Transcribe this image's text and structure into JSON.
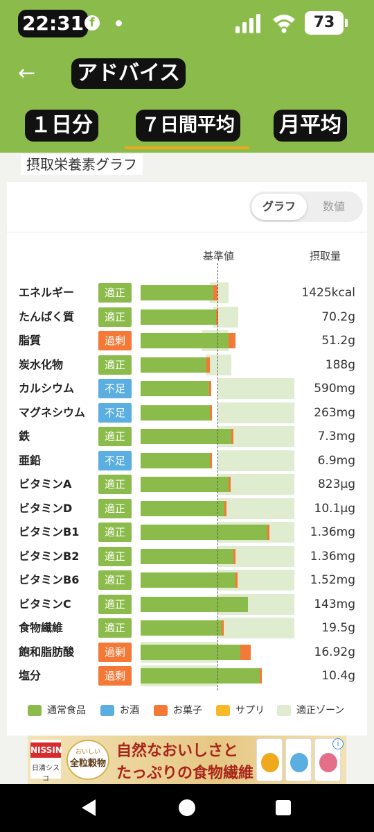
{
  "status": {
    "time": "22:31",
    "battery": "73",
    "notification_app": "facebook"
  },
  "appbar": {
    "title": "アドバイス",
    "back_icon": "arrow-left-icon"
  },
  "tabs": [
    {
      "label": "１日分",
      "selected": false
    },
    {
      "label": "７日間平均",
      "selected": true
    },
    {
      "label": "月平均",
      "selected": false
    }
  ],
  "section": {
    "title": "摂取栄養素グラフ"
  },
  "toggle": {
    "graph": "グラフ",
    "number": "数値",
    "selected": "graph"
  },
  "headers": {
    "base": "基準値",
    "amount": "摂取量"
  },
  "colors": {
    "normal_food": "#8bbb4a",
    "alcohol": "#5aaee0",
    "snack": "#f47836",
    "supplement": "#f7b82a",
    "proper_zone": "#e0eccf",
    "badge_proper": "#8bbb4a",
    "badge_excess": "#f47836",
    "badge_short": "#5aaee0"
  },
  "chart_data": {
    "type": "bar",
    "baseline_label": "基準値",
    "value_unit": "fraction of reference value (基準値 = 1.0)",
    "rows": [
      {
        "name": "エネルギー",
        "status": "適正",
        "status_type": "proper",
        "amount": "1425kcal",
        "food": 0.95,
        "snack": 0.05,
        "zone": [
          0.9,
          1.14
        ]
      },
      {
        "name": "たんぱく質",
        "status": "適正",
        "status_type": "proper",
        "amount": "70.2g",
        "food": 0.98,
        "snack": 0.03,
        "zone": [
          0.95,
          1.27
        ]
      },
      {
        "name": "脂質",
        "status": "過剰",
        "status_type": "excess",
        "amount": "51.2g",
        "food": 1.14,
        "snack": 0.09,
        "zone": [
          0.79,
          1.14
        ]
      },
      {
        "name": "炭水化物",
        "status": "適正",
        "status_type": "proper",
        "amount": "188g",
        "food": 0.86,
        "snack": 0.04,
        "zone": [
          0.85,
          1.18
        ]
      },
      {
        "name": "カルシウム",
        "status": "不足",
        "status_type": "short",
        "amount": "590mg",
        "food": 0.89,
        "snack": 0.01,
        "zone": [
          1.0,
          2.0
        ]
      },
      {
        "name": "マグネシウム",
        "status": "不足",
        "status_type": "short",
        "amount": "263mg",
        "food": 0.9,
        "snack": 0.01,
        "zone": [
          1.0,
          2.0
        ]
      },
      {
        "name": "鉄",
        "status": "適正",
        "status_type": "proper",
        "amount": "7.3mg",
        "food": 1.18,
        "snack": 0.02,
        "zone": [
          1.0,
          2.0
        ]
      },
      {
        "name": "亜鉛",
        "status": "不足",
        "status_type": "short",
        "amount": "6.9mg",
        "food": 0.9,
        "snack": 0.01,
        "zone": [
          1.0,
          2.0
        ]
      },
      {
        "name": "ビタミンA",
        "status": "適正",
        "status_type": "proper",
        "amount": "823μg",
        "food": 1.14,
        "snack": 0.02,
        "zone": [
          1.0,
          2.0
        ]
      },
      {
        "name": "ビタミンD",
        "status": "適正",
        "status_type": "proper",
        "amount": "10.1μg",
        "food": 1.09,
        "snack": 0.02,
        "zone": [
          1.0,
          2.0
        ]
      },
      {
        "name": "ビタミンB1",
        "status": "適正",
        "status_type": "proper",
        "amount": "1.36mg",
        "food": 1.65,
        "snack": 0.02,
        "zone": [
          1.0,
          2.0
        ]
      },
      {
        "name": "ビタミンB2",
        "status": "適正",
        "status_type": "proper",
        "amount": "1.36mg",
        "food": 1.21,
        "snack": 0.02,
        "zone": [
          1.0,
          2.0
        ]
      },
      {
        "name": "ビタミンB6",
        "status": "適正",
        "status_type": "proper",
        "amount": "1.52mg",
        "food": 1.23,
        "snack": 0.02,
        "zone": [
          1.0,
          2.0
        ]
      },
      {
        "name": "ビタミンC",
        "status": "適正",
        "status_type": "proper",
        "amount": "143mg",
        "food": 1.4,
        "snack": 0.0,
        "zone": [
          1.0,
          2.0
        ]
      },
      {
        "name": "食物繊維",
        "status": "適正",
        "status_type": "proper",
        "amount": "19.5g",
        "food": 1.05,
        "snack": 0.02,
        "zone": [
          1.0,
          2.0
        ]
      },
      {
        "name": "飽和脂肪酸",
        "status": "過剰",
        "status_type": "excess",
        "amount": "16.92g",
        "food": 1.3,
        "snack": 0.13,
        "zone": [
          0.0,
          1.0
        ]
      },
      {
        "name": "塩分",
        "status": "過剰",
        "status_type": "excess",
        "amount": "10.4g",
        "food": 1.55,
        "snack": 0.03,
        "zone": [
          0.0,
          1.0
        ]
      }
    ]
  },
  "legend": [
    {
      "label": "通常食品",
      "color": "#8bbb4a"
    },
    {
      "label": "お酒",
      "color": "#5aaee0"
    },
    {
      "label": "お菓子",
      "color": "#f47836"
    },
    {
      "label": "サプリ",
      "color": "#f7b82a"
    },
    {
      "label": "適正ゾーン",
      "color": "#e0eccf"
    }
  ],
  "ad": {
    "brand": "NISSIN",
    "brand_sub": "日清シスコ",
    "product_badge_top": "おいしい",
    "product_badge": "全粒穀物",
    "line1": "自然なおいしさと",
    "line2": "たっぷりの食物繊維"
  }
}
